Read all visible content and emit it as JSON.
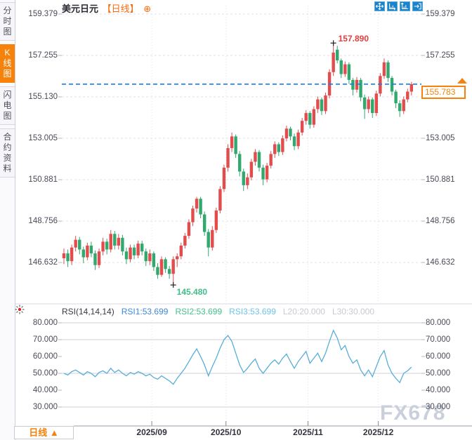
{
  "header": {
    "title": "美元日元",
    "period": "【日线】",
    "expand_icon": "⊕"
  },
  "toolbar": {
    "icons": [
      {
        "name": "move-icon"
      },
      {
        "name": "zoom-horizontal-axis-icon"
      },
      {
        "name": "zoom-vertical-axis-icon"
      },
      {
        "name": "exit-chart-icon"
      }
    ]
  },
  "sidebar": {
    "items": [
      {
        "label": "分时图",
        "active": false
      },
      {
        "label": "K线图",
        "active": true
      },
      {
        "label": "闪电图",
        "active": false
      },
      {
        "label": "合约资料",
        "active": false
      }
    ]
  },
  "rsi_header": {
    "items": [
      {
        "text": "RSI(14,14,14)",
        "color": "#3a3a45"
      },
      {
        "text": "RSI1:53.699",
        "color": "#3f87d6"
      },
      {
        "text": "RSI2:53.699",
        "color": "#45c08c"
      },
      {
        "text": "RSI3:53.699",
        "color": "#6ec3e8"
      },
      {
        "text": "L20:20.000",
        "color": "#c8c8d2"
      },
      {
        "text": "L30:30.000",
        "color": "#c8c8d2"
      }
    ]
  },
  "annotations": {
    "high_label": "157.890",
    "low_label": "145.480",
    "last_price": "155.783"
  },
  "bottom_tab": {
    "label": "日线",
    "arrow": "▲"
  },
  "watermark": {
    "text": "FX678"
  },
  "colors": {
    "up": "#e24c4c",
    "down": "#30a86e",
    "rsi_line": "#58aed8",
    "last_price_line": "#1a7fe0",
    "accent_orange": "#f5820a",
    "grid_dash": "#e2e2ea",
    "grid_solid": "#cfcfd8",
    "tick": "#b5b5c0",
    "pane_border": "#d9d9e2",
    "axis_line": "#9a9aa5",
    "marker": "#222222"
  },
  "chart_data": [
    {
      "type": "candlestick",
      "title": "美元日元 日线",
      "y_axis": {
        "tick_labels": [
          "159.379",
          "157.255",
          "155.130",
          "153.005",
          "150.881",
          "148.756",
          "146.632"
        ],
        "tick_values": [
          159.379,
          157.255,
          155.13,
          153.005,
          150.881,
          148.756,
          146.632
        ]
      },
      "x_ticks": [
        {
          "label": "2025/09",
          "i": 22.5
        },
        {
          "label": "2025/10",
          "i": 41.5
        },
        {
          "label": "2025/11",
          "i": 62.5
        },
        {
          "label": "2025/12",
          "i": 80.5
        }
      ],
      "high": {
        "value": 157.89,
        "index": 69
      },
      "low": {
        "value": 145.48,
        "index": 28
      },
      "last_price": 155.783,
      "ohlc": [
        [
          146.85,
          147.35,
          146.55,
          147.1
        ],
        [
          147.1,
          147.3,
          146.4,
          146.7
        ],
        [
          146.7,
          147.55,
          146.5,
          147.4
        ],
        [
          147.4,
          148.0,
          147.2,
          147.8
        ],
        [
          147.8,
          147.95,
          147.05,
          147.3
        ],
        [
          147.3,
          147.45,
          146.6,
          146.9
        ],
        [
          146.9,
          147.65,
          146.75,
          147.5
        ],
        [
          147.5,
          147.7,
          146.9,
          147.1
        ],
        [
          147.1,
          147.25,
          146.25,
          146.5
        ],
        [
          146.5,
          147.35,
          146.35,
          147.2
        ],
        [
          147.2,
          147.9,
          147.0,
          147.7
        ],
        [
          147.7,
          147.85,
          147.05,
          147.3
        ],
        [
          147.3,
          148.3,
          147.15,
          148.1
        ],
        [
          148.1,
          148.25,
          147.3,
          147.5
        ],
        [
          147.5,
          148.1,
          147.3,
          147.9
        ],
        [
          147.9,
          148.05,
          147.0,
          147.2
        ],
        [
          147.2,
          147.4,
          146.55,
          146.8
        ],
        [
          146.8,
          147.55,
          146.65,
          147.4
        ],
        [
          147.4,
          147.55,
          146.8,
          147.0
        ],
        [
          147.0,
          147.75,
          146.85,
          147.6
        ],
        [
          147.6,
          147.75,
          147.0,
          147.2
        ],
        [
          147.2,
          147.35,
          146.45,
          146.7
        ],
        [
          146.7,
          147.3,
          146.5,
          147.1
        ],
        [
          147.1,
          147.2,
          146.2,
          146.4
        ],
        [
          146.4,
          146.6,
          145.8,
          146.0
        ],
        [
          146.0,
          146.95,
          145.9,
          146.8
        ],
        [
          146.8,
          146.9,
          146.1,
          146.3
        ],
        [
          146.3,
          146.45,
          145.8,
          146.05
        ],
        [
          146.05,
          146.95,
          145.48,
          146.8
        ],
        [
          146.8,
          147.1,
          146.4,
          146.95
        ],
        [
          146.95,
          147.65,
          146.8,
          147.5
        ],
        [
          147.5,
          148.15,
          147.35,
          148.0
        ],
        [
          148.0,
          148.85,
          147.85,
          148.7
        ],
        [
          148.7,
          149.55,
          148.5,
          149.4
        ],
        [
          149.4,
          150.0,
          149.2,
          149.9
        ],
        [
          149.9,
          150.0,
          148.9,
          149.1
        ],
        [
          149.1,
          149.25,
          148.0,
          148.2
        ],
        [
          148.2,
          148.35,
          146.95,
          147.4
        ],
        [
          147.4,
          148.5,
          147.25,
          148.3
        ],
        [
          148.3,
          149.45,
          148.15,
          149.3
        ],
        [
          149.3,
          150.55,
          149.15,
          150.4
        ],
        [
          150.4,
          151.65,
          150.25,
          151.5
        ],
        [
          151.5,
          152.7,
          151.3,
          152.5
        ],
        [
          152.5,
          153.3,
          152.3,
          153.1
        ],
        [
          153.1,
          153.2,
          152.0,
          152.2
        ],
        [
          152.2,
          152.35,
          151.05,
          151.3
        ],
        [
          151.3,
          151.45,
          150.3,
          150.6
        ],
        [
          150.6,
          151.2,
          150.4,
          151.0
        ],
        [
          151.0,
          151.95,
          150.85,
          151.8
        ],
        [
          151.8,
          152.45,
          151.6,
          152.3
        ],
        [
          152.3,
          152.4,
          151.3,
          151.5
        ],
        [
          151.5,
          151.65,
          150.6,
          150.9
        ],
        [
          150.9,
          151.75,
          150.75,
          151.6
        ],
        [
          151.6,
          152.35,
          151.45,
          152.2
        ],
        [
          152.2,
          152.85,
          152.0,
          152.7
        ],
        [
          152.7,
          152.8,
          152.1,
          152.3
        ],
        [
          152.3,
          153.15,
          152.15,
          153.0
        ],
        [
          153.0,
          153.65,
          152.85,
          153.5
        ],
        [
          153.5,
          153.6,
          152.9,
          153.1
        ],
        [
          153.1,
          153.25,
          152.4,
          152.6
        ],
        [
          152.6,
          153.45,
          152.45,
          153.3
        ],
        [
          153.3,
          154.05,
          153.15,
          153.9
        ],
        [
          153.9,
          154.45,
          153.7,
          154.3
        ],
        [
          154.3,
          154.4,
          153.5,
          153.7
        ],
        [
          153.7,
          154.65,
          153.55,
          154.5
        ],
        [
          154.5,
          155.15,
          154.3,
          155.0
        ],
        [
          155.0,
          155.1,
          154.2,
          154.4
        ],
        [
          154.4,
          155.35,
          154.25,
          155.2
        ],
        [
          155.2,
          156.55,
          155.05,
          156.4
        ],
        [
          156.4,
          157.89,
          156.2,
          157.4
        ],
        [
          157.55,
          157.75,
          156.85,
          157.0
        ],
        [
          157.0,
          157.1,
          156.1,
          156.3
        ],
        [
          156.3,
          156.95,
          156.15,
          156.8
        ],
        [
          156.8,
          156.9,
          155.8,
          156.0
        ],
        [
          156.0,
          156.1,
          155.2,
          155.5
        ],
        [
          155.5,
          156.15,
          155.35,
          156.0
        ],
        [
          156.0,
          156.1,
          154.9,
          155.1
        ],
        [
          155.1,
          155.25,
          154.0,
          154.5
        ],
        [
          154.5,
          155.15,
          154.3,
          155.0
        ],
        [
          155.0,
          155.1,
          154.05,
          154.3
        ],
        [
          154.3,
          155.45,
          154.15,
          155.3
        ],
        [
          155.3,
          156.35,
          155.15,
          156.2
        ],
        [
          156.2,
          157.1,
          156.05,
          156.9
        ],
        [
          156.9,
          157.0,
          155.9,
          156.1
        ],
        [
          156.1,
          156.2,
          155.2,
          155.4
        ],
        [
          155.4,
          155.5,
          154.55,
          154.8
        ],
        [
          154.8,
          154.95,
          154.1,
          154.4
        ],
        [
          154.4,
          155.15,
          154.25,
          155.0
        ],
        [
          155.0,
          155.55,
          154.85,
          155.4
        ],
        [
          155.4,
          155.9,
          155.2,
          155.783
        ]
      ]
    },
    {
      "type": "line",
      "name": "RSI(14,14,14)",
      "legend": [
        "RSI1:53.699",
        "RSI2:53.699",
        "RSI3:53.699",
        "L20:20.000",
        "L30:30.000"
      ],
      "y_axis": {
        "tick_labels": [
          "80.000",
          "70.000",
          "60.000",
          "50.000",
          "40.000",
          "30.000"
        ],
        "tick_values": [
          80,
          70,
          60,
          50,
          40,
          30
        ]
      },
      "values": [
        50,
        49,
        51,
        52,
        50.5,
        49,
        51,
        50,
        48,
        50.5,
        51.5,
        50,
        53,
        50.5,
        52,
        50,
        48.5,
        50.5,
        49.5,
        51,
        50,
        48.5,
        49.5,
        47.5,
        46.5,
        48.5,
        47,
        45.5,
        43.5,
        47,
        50,
        53,
        57,
        61,
        64.5,
        60,
        55,
        48.5,
        54,
        59,
        65,
        70,
        72.5,
        69,
        62,
        55,
        50.5,
        53,
        56,
        58.5,
        53,
        50,
        53,
        56,
        58,
        55.5,
        59,
        61.5,
        57,
        53,
        57,
        60,
        63,
        56,
        59,
        62,
        57,
        62,
        69,
        75.5,
        71,
        64,
        66.5,
        60,
        56,
        58,
        52,
        48.5,
        52,
        48,
        54,
        60,
        63.5,
        55,
        50,
        47,
        44.5,
        50,
        51.5,
        53.7
      ]
    }
  ]
}
